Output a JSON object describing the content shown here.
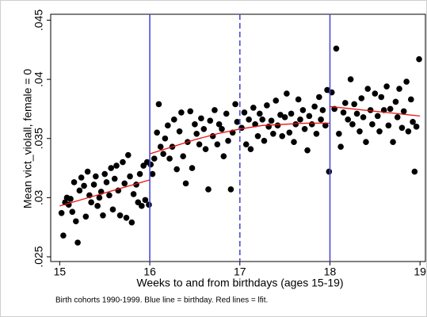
{
  "chart_data": {
    "type": "scatter",
    "x_label": "Weeks to and from birthdays (ages 15-19)",
    "y_label": "Mean vict_violall, female = 0",
    "note": "Birth cohorts 1990-1999. Blue line = birthday. Red lines = lfit.",
    "xlim": [
      14.9,
      19.06
    ],
    "ylim": [
      0.0246,
      0.0455
    ],
    "xticks": [
      15,
      16,
      17,
      18,
      19
    ],
    "yticks": [
      {
        "value": 0.025,
        "label": ".025"
      },
      {
        "value": 0.03,
        "label": ".03"
      },
      {
        "value": 0.035,
        "label": ".035"
      },
      {
        "value": 0.04,
        "label": ".04"
      },
      {
        "value": 0.045,
        "label": ".045"
      }
    ],
    "points": {
      "color": "#000000",
      "x": [
        15.02,
        15.04,
        15.06,
        15.08,
        15.1,
        15.12,
        15.14,
        15.16,
        15.18,
        15.2,
        15.22,
        15.24,
        15.27,
        15.29,
        15.31,
        15.33,
        15.35,
        15.38,
        15.4,
        15.42,
        15.44,
        15.46,
        15.48,
        15.5,
        15.52,
        15.55,
        15.57,
        15.59,
        15.61,
        15.63,
        15.65,
        15.67,
        15.7,
        15.72,
        15.74,
        15.76,
        15.78,
        15.8,
        15.82,
        15.85,
        15.87,
        15.89,
        15.91,
        15.93,
        15.95,
        15.97,
        15.99,
        16.01,
        16.03,
        16.05,
        16.08,
        16.1,
        16.12,
        16.15,
        16.17,
        16.2,
        16.22,
        16.25,
        16.27,
        16.3,
        16.33,
        16.35,
        16.37,
        16.4,
        16.42,
        16.45,
        16.47,
        16.5,
        16.52,
        16.55,
        16.57,
        16.6,
        16.62,
        16.65,
        16.67,
        16.7,
        16.72,
        16.75,
        16.77,
        16.8,
        16.82,
        16.85,
        16.87,
        16.9,
        16.92,
        16.95,
        16.97,
        17.02,
        17.05,
        17.07,
        17.1,
        17.12,
        17.15,
        17.17,
        17.2,
        17.22,
        17.25,
        17.27,
        17.3,
        17.32,
        17.35,
        17.37,
        17.4,
        17.42,
        17.45,
        17.47,
        17.5,
        17.52,
        17.55,
        17.57,
        17.6,
        17.62,
        17.65,
        17.67,
        17.7,
        17.72,
        17.75,
        17.77,
        17.8,
        17.83,
        17.85,
        17.88,
        17.9,
        17.92,
        17.95,
        17.97,
        17.99,
        18.02,
        18.05,
        18.07,
        18.1,
        18.12,
        18.15,
        18.17,
        18.2,
        18.23,
        18.25,
        18.27,
        18.3,
        18.33,
        18.35,
        18.37,
        18.4,
        18.42,
        18.45,
        18.47,
        18.5,
        18.53,
        18.55,
        18.57,
        18.6,
        18.63,
        18.65,
        18.67,
        18.7,
        18.73,
        18.75,
        18.77,
        18.8,
        18.82,
        18.85,
        18.87,
        18.9,
        18.92,
        18.94,
        18.96,
        18.99
      ],
      "y": [
        0.0287,
        0.0268,
        0.0296,
        0.03,
        0.0294,
        0.0299,
        0.0288,
        0.0313,
        0.028,
        0.0262,
        0.0306,
        0.0317,
        0.031,
        0.0284,
        0.0322,
        0.0302,
        0.0296,
        0.0311,
        0.0318,
        0.0293,
        0.03,
        0.0305,
        0.0285,
        0.032,
        0.0313,
        0.0302,
        0.0325,
        0.029,
        0.0316,
        0.0327,
        0.0306,
        0.0285,
        0.033,
        0.0312,
        0.0283,
        0.0336,
        0.0318,
        0.0279,
        0.0303,
        0.0311,
        0.0296,
        0.032,
        0.0293,
        0.0327,
        0.0298,
        0.033,
        0.0294,
        0.0328,
        0.032,
        0.0333,
        0.0355,
        0.0379,
        0.0343,
        0.0337,
        0.035,
        0.0361,
        0.0333,
        0.0343,
        0.0366,
        0.0324,
        0.0356,
        0.0372,
        0.0335,
        0.0312,
        0.0347,
        0.0373,
        0.0325,
        0.0362,
        0.0354,
        0.0345,
        0.0367,
        0.0358,
        0.0341,
        0.0307,
        0.0365,
        0.0352,
        0.0374,
        0.0345,
        0.0362,
        0.0358,
        0.0335,
        0.0371,
        0.0348,
        0.0307,
        0.0355,
        0.0379,
        0.0364,
        0.0359,
        0.0372,
        0.0345,
        0.0366,
        0.0341,
        0.0376,
        0.0362,
        0.0352,
        0.0371,
        0.0366,
        0.0348,
        0.0378,
        0.036,
        0.0365,
        0.0354,
        0.0382,
        0.0361,
        0.037,
        0.0352,
        0.0368,
        0.0388,
        0.0355,
        0.0371,
        0.0347,
        0.0362,
        0.0383,
        0.0366,
        0.0374,
        0.0358,
        0.034,
        0.0369,
        0.0362,
        0.0377,
        0.0354,
        0.0385,
        0.0366,
        0.0374,
        0.0361,
        0.0391,
        0.0322,
        0.0389,
        0.0375,
        0.0426,
        0.0354,
        0.0343,
        0.0372,
        0.038,
        0.0366,
        0.04,
        0.0362,
        0.0379,
        0.0371,
        0.0356,
        0.0384,
        0.0368,
        0.0347,
        0.0392,
        0.0374,
        0.0362,
        0.0388,
        0.0369,
        0.0356,
        0.0385,
        0.0374,
        0.0394,
        0.0361,
        0.0375,
        0.0347,
        0.0381,
        0.0368,
        0.0392,
        0.0359,
        0.0373,
        0.0398,
        0.0356,
        0.0383,
        0.0364,
        0.0322,
        0.036,
        0.0417
      ]
    },
    "fit_lines": [
      {
        "color": "#e8140e",
        "x": [
          15,
          16
        ],
        "y": [
          0.0293,
          0.0315
        ]
      },
      {
        "color": "#e8140e",
        "x": [
          16,
          16.25,
          16.5,
          16.75,
          17,
          17.25,
          17.5,
          17.75,
          18
        ],
        "y": [
          0.0337,
          0.0343,
          0.0349,
          0.0354,
          0.0358,
          0.0361,
          0.0362,
          0.0363,
          0.0363
        ]
      },
      {
        "color": "#e8140e",
        "x": [
          18,
          19
        ],
        "y": [
          0.0377,
          0.0369
        ]
      }
    ],
    "vlines": [
      {
        "x": 16,
        "style": "solid",
        "color": "#4b4bd6"
      },
      {
        "x": 17,
        "style": "dashed",
        "color": "#4b4bd6"
      },
      {
        "x": 18,
        "style": "solid",
        "color": "#4b4bd6"
      }
    ]
  }
}
